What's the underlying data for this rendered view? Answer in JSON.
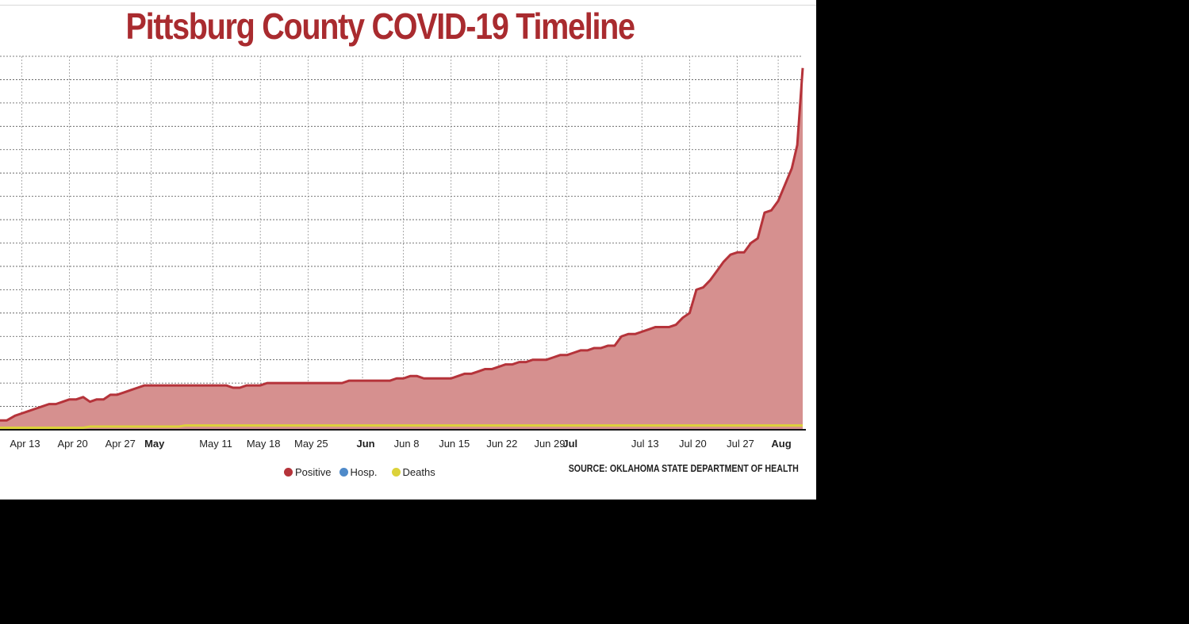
{
  "chart_data": {
    "type": "area",
    "title": "Pittsburg County COVID-19 Timeline",
    "xlabel": "",
    "ylabel": "",
    "x_ticks": [
      {
        "label": "Apr 13",
        "day": 103,
        "major": false
      },
      {
        "label": "Apr 20",
        "day": 110,
        "major": false
      },
      {
        "label": "Apr 27",
        "day": 117,
        "major": false
      },
      {
        "label": "May",
        "day": 122,
        "major": true
      },
      {
        "label": "May 11",
        "day": 131,
        "major": false
      },
      {
        "label": "May 18",
        "day": 138,
        "major": false
      },
      {
        "label": "May 25",
        "day": 145,
        "major": false
      },
      {
        "label": "Jun",
        "day": 153,
        "major": true
      },
      {
        "label": "Jun 8",
        "day": 159,
        "major": false
      },
      {
        "label": "Jun 15",
        "day": 166,
        "major": false
      },
      {
        "label": "Jun 22",
        "day": 173,
        "major": false
      },
      {
        "label": "Jun 29",
        "day": 180,
        "major": false
      },
      {
        "label": "Jul",
        "day": 183,
        "major": true
      },
      {
        "label": "Jul 13",
        "day": 194,
        "major": false
      },
      {
        "label": "Jul 20",
        "day": 201,
        "major": false
      },
      {
        "label": "Jul 27",
        "day": 208,
        "major": false
      },
      {
        "label": "Aug",
        "day": 214,
        "major": true
      }
    ],
    "x_range_day": [
      99.8,
      217.6
    ],
    "y_range": [
      0,
      16
    ],
    "grid": true,
    "legend_position": "bottom",
    "series": [
      {
        "name": "Positive",
        "color": "#b5333a",
        "fill": "#d6908f",
        "points": [
          [
            99.8,
            0.4
          ],
          [
            100.8,
            0.4
          ],
          [
            102,
            0.6
          ],
          [
            103,
            0.7
          ],
          [
            104,
            0.8
          ],
          [
            105,
            0.9
          ],
          [
            106,
            1.0
          ],
          [
            107,
            1.1
          ],
          [
            108,
            1.1
          ],
          [
            109,
            1.2
          ],
          [
            110,
            1.3
          ],
          [
            111,
            1.3
          ],
          [
            112,
            1.4
          ],
          [
            113,
            1.2
          ],
          [
            114,
            1.3
          ],
          [
            115,
            1.3
          ],
          [
            116,
            1.5
          ],
          [
            117,
            1.5
          ],
          [
            118,
            1.6
          ],
          [
            119,
            1.7
          ],
          [
            120,
            1.8
          ],
          [
            121,
            1.9
          ],
          [
            122,
            1.9
          ],
          [
            123,
            1.9
          ],
          [
            124,
            1.9
          ],
          [
            125,
            1.9
          ],
          [
            126,
            1.9
          ],
          [
            127,
            1.9
          ],
          [
            128,
            1.9
          ],
          [
            129,
            1.9
          ],
          [
            130,
            1.9
          ],
          [
            131,
            1.9
          ],
          [
            132,
            1.9
          ],
          [
            133,
            1.9
          ],
          [
            134,
            1.8
          ],
          [
            135,
            1.8
          ],
          [
            136,
            1.9
          ],
          [
            137,
            1.9
          ],
          [
            138,
            1.9
          ],
          [
            139,
            2.0
          ],
          [
            140,
            2.0
          ],
          [
            141,
            2.0
          ],
          [
            142,
            2.0
          ],
          [
            143,
            2.0
          ],
          [
            144,
            2.0
          ],
          [
            145,
            2.0
          ],
          [
            146,
            2.0
          ],
          [
            147,
            2.0
          ],
          [
            148,
            2.0
          ],
          [
            149,
            2.0
          ],
          [
            150,
            2.0
          ],
          [
            151,
            2.1
          ],
          [
            152,
            2.1
          ],
          [
            153,
            2.1
          ],
          [
            154,
            2.1
          ],
          [
            155,
            2.1
          ],
          [
            156,
            2.1
          ],
          [
            157,
            2.1
          ],
          [
            158,
            2.2
          ],
          [
            159,
            2.2
          ],
          [
            160,
            2.3
          ],
          [
            161,
            2.3
          ],
          [
            162,
            2.2
          ],
          [
            163,
            2.2
          ],
          [
            164,
            2.2
          ],
          [
            165,
            2.2
          ],
          [
            166,
            2.2
          ],
          [
            167,
            2.3
          ],
          [
            168,
            2.4
          ],
          [
            169,
            2.4
          ],
          [
            170,
            2.5
          ],
          [
            171,
            2.6
          ],
          [
            172,
            2.6
          ],
          [
            173,
            2.7
          ],
          [
            174,
            2.8
          ],
          [
            175,
            2.8
          ],
          [
            176,
            2.9
          ],
          [
            177,
            2.9
          ],
          [
            178,
            3.0
          ],
          [
            179,
            3.0
          ],
          [
            180,
            3.0
          ],
          [
            181,
            3.1
          ],
          [
            182,
            3.2
          ],
          [
            183,
            3.2
          ],
          [
            184,
            3.3
          ],
          [
            185,
            3.4
          ],
          [
            186,
            3.4
          ],
          [
            187,
            3.5
          ],
          [
            188,
            3.5
          ],
          [
            189,
            3.6
          ],
          [
            190,
            3.6
          ],
          [
            191,
            4.0
          ],
          [
            192,
            4.1
          ],
          [
            193,
            4.1
          ],
          [
            194,
            4.2
          ],
          [
            195,
            4.3
          ],
          [
            196,
            4.4
          ],
          [
            197,
            4.4
          ],
          [
            198,
            4.4
          ],
          [
            199,
            4.5
          ],
          [
            200,
            4.8
          ],
          [
            201,
            5.0
          ],
          [
            202,
            6.0
          ],
          [
            203,
            6.1
          ],
          [
            204,
            6.4
          ],
          [
            205,
            6.8
          ],
          [
            206,
            7.2
          ],
          [
            207,
            7.5
          ],
          [
            208,
            7.6
          ],
          [
            209,
            7.6
          ],
          [
            210,
            8.0
          ],
          [
            211,
            8.2
          ],
          [
            212,
            9.3
          ],
          [
            213,
            9.4
          ],
          [
            214,
            9.8
          ],
          [
            215,
            10.5
          ],
          [
            216,
            11.2
          ],
          [
            216.8,
            12.2
          ],
          [
            217.6,
            15.5
          ]
        ]
      },
      {
        "name": "Hosp.",
        "color": "#4f8ac9",
        "points": [
          [
            99.8,
            0.0
          ],
          [
            217.6,
            0.0
          ]
        ]
      },
      {
        "name": "Deaths",
        "color": "#dcd23a",
        "points": [
          [
            99.8,
            0.05
          ],
          [
            112,
            0.05
          ],
          [
            113,
            0.1
          ],
          [
            126,
            0.1
          ],
          [
            127,
            0.15
          ],
          [
            217.6,
            0.15
          ]
        ]
      }
    ],
    "source": "SOURCE: OKLAHOMA STATE DEPARTMENT OF HEALTH"
  }
}
